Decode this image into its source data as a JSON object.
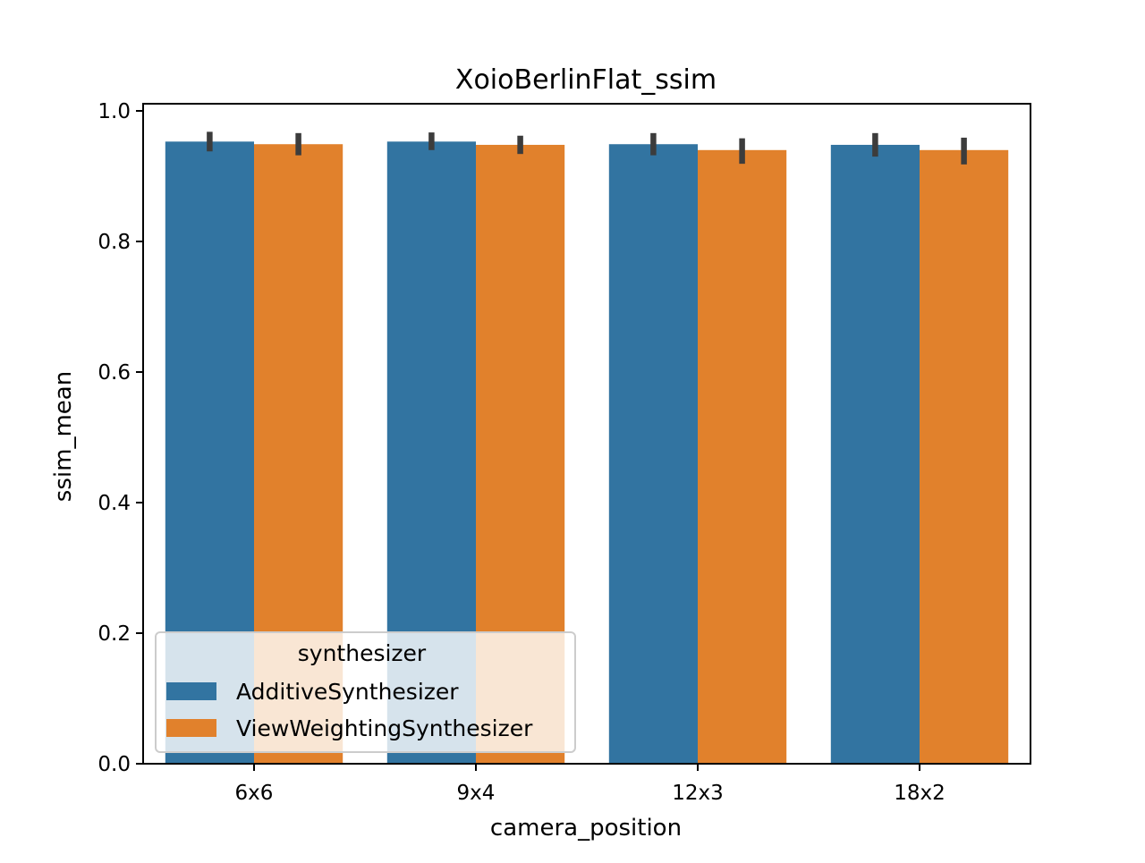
{
  "chart_data": {
    "type": "bar",
    "title": "XoioBerlinFlat_ssim",
    "xlabel": "camera_position",
    "ylabel": "ssim_mean",
    "categories": [
      "6x6",
      "9x4",
      "12x3",
      "18x2"
    ],
    "ylim": [
      0,
      1.0
    ],
    "yticks": [
      "0.0",
      "0.2",
      "0.4",
      "0.6",
      "0.8",
      "1.0"
    ],
    "grid": false,
    "legend": {
      "title": "synthesizer",
      "placement": "lower-left"
    },
    "series": [
      {
        "name": "AdditiveSynthesizer",
        "color": "#3274a1",
        "values": [
          0.953,
          0.953,
          0.949,
          0.948
        ],
        "ci_low": [
          0.938,
          0.94,
          0.932,
          0.93
        ],
        "ci_high": [
          0.968,
          0.967,
          0.966,
          0.966
        ]
      },
      {
        "name": "ViewWeightingSynthesizer",
        "color": "#e1812c",
        "values": [
          0.949,
          0.948,
          0.94,
          0.94
        ],
        "ci_low": [
          0.932,
          0.934,
          0.919,
          0.918
        ],
        "ci_high": [
          0.966,
          0.962,
          0.958,
          0.959
        ]
      }
    ],
    "errorbar_color": "#3c3c3c"
  }
}
